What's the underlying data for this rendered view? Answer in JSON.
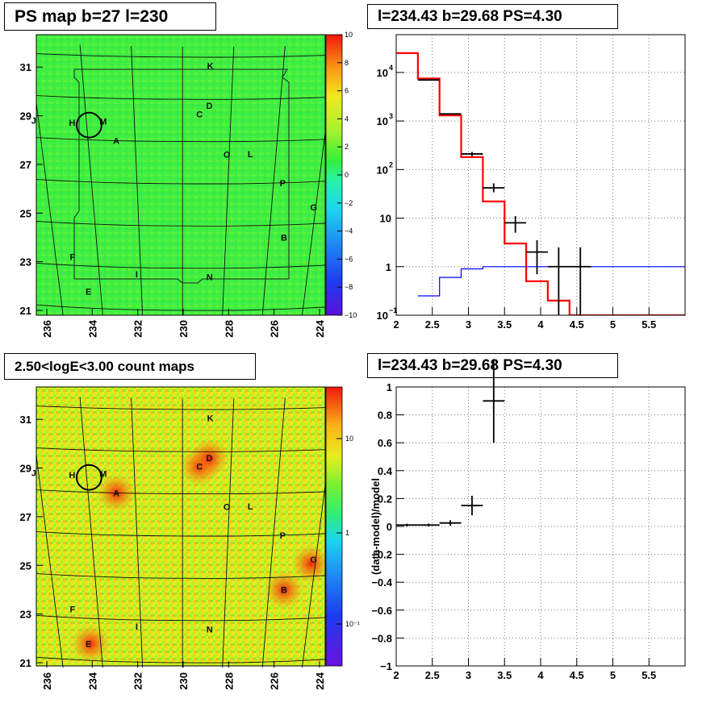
{
  "panels": {
    "ps_map": {
      "title": "PS map b=27 l=230",
      "b_ticks": [
        "21",
        "23",
        "25",
        "27",
        "29",
        "31"
      ],
      "l_ticks": [
        "236",
        "234",
        "232",
        "230",
        "228",
        "226",
        "224"
      ],
      "colorbar": {
        "ticks": [
          "10",
          "8",
          "6",
          "4",
          "2",
          "0",
          "−2",
          "−4",
          "−6",
          "−8",
          "−10"
        ],
        "range": [
          -10,
          10
        ]
      }
    },
    "count_map": {
      "title": "2.50<logE<3.00 count maps",
      "b_ticks": [
        "21",
        "23",
        "25",
        "27",
        "29",
        "31"
      ],
      "l_ticks": [
        "236",
        "234",
        "232",
        "230",
        "228",
        "226",
        "224"
      ],
      "colorbar": {
        "ticks": [
          "10",
          "1",
          "10⁻¹"
        ],
        "scale": "log"
      }
    },
    "spectrum": {
      "title": "l=234.43 b=29.68 PS=4.30"
    },
    "residual": {
      "title": "l=234.43 b=29.68 PS=4.30"
    }
  },
  "markers": [
    {
      "label": "K",
      "l": 228.9,
      "b": 32.6
    },
    {
      "label": "D",
      "l": 228.9,
      "b": 30.7
    },
    {
      "label": "C",
      "l": 229.3,
      "b": 30.3
    },
    {
      "label": "J",
      "l": 236.2,
      "b": 29.8
    },
    {
      "label": "H",
      "l": 234.6,
      "b": 29.8
    },
    {
      "label": "M",
      "l": 233.3,
      "b": 29.9
    },
    {
      "label": "A",
      "l": 232.8,
      "b": 29.0
    },
    {
      "label": "O",
      "l": 228.1,
      "b": 28.4
    },
    {
      "label": "L",
      "l": 227.1,
      "b": 28.4
    },
    {
      "label": "P",
      "l": 225.6,
      "b": 27.0
    },
    {
      "label": "G",
      "l": 224.1,
      "b": 25.8
    },
    {
      "label": "B",
      "l": 225.3,
      "b": 24.4
    },
    {
      "label": "F",
      "l": 235.2,
      "b": 23.4
    },
    {
      "label": "I",
      "l": 232.2,
      "b": 22.7
    },
    {
      "label": "N",
      "l": 228.7,
      "b": 22.6
    },
    {
      "label": "E",
      "l": 234.6,
      "b": 21.8
    }
  ],
  "circle": {
    "l": 233.9,
    "b": 29.7,
    "radius_deg": 0.55
  },
  "blobs": [
    {
      "label": "A",
      "l": 232.8,
      "b": 29.0
    },
    {
      "label": "C",
      "l": 229.3,
      "b": 30.3
    },
    {
      "label": "D",
      "l": 228.9,
      "b": 30.7
    },
    {
      "label": "B",
      "l": 225.3,
      "b": 24.4
    },
    {
      "label": "E",
      "l": 234.5,
      "b": 21.8
    },
    {
      "label": "G",
      "l": 224.2,
      "b": 25.6
    }
  ],
  "chart_data": [
    {
      "type": "line",
      "name": "spectrum",
      "title": "l=234.43 b=29.68 PS=4.30",
      "xlabel": "",
      "ylabel": "",
      "xlim": [
        2,
        6
      ],
      "ylim": [
        0.1,
        60000
      ],
      "yscale": "log",
      "grid": true,
      "x_ticks": [
        "2",
        "2.5",
        "3",
        "3.5",
        "4",
        "4.5",
        "5",
        "5.5"
      ],
      "y_ticks": [
        {
          "v": 0.1,
          "base": "10",
          "exp": "−1"
        },
        {
          "v": 1,
          "base": "1",
          "exp": ""
        },
        {
          "v": 10,
          "base": "10",
          "exp": ""
        },
        {
          "v": 100,
          "base": "10",
          "exp": "2"
        },
        {
          "v": 1000,
          "base": "10",
          "exp": "3"
        },
        {
          "v": 10000,
          "base": "10",
          "exp": "4"
        }
      ],
      "series": [
        {
          "color": "#ff0000",
          "style": "histogram",
          "edges": [
            2.0,
            2.3,
            2.6,
            2.9,
            3.2,
            3.5,
            3.8,
            4.1,
            4.4,
            4.7,
            6.0
          ],
          "values": [
            25000,
            7500,
            1300,
            180,
            22,
            3,
            0.5,
            0.2,
            0.1,
            0.1
          ]
        },
        {
          "color": "#0000ff",
          "style": "histogram",
          "edges": [
            2.3,
            2.6,
            2.9,
            3.2,
            3.5,
            6.0
          ],
          "values": [
            0.25,
            0.6,
            0.9,
            1.0,
            1.0
          ]
        },
        {
          "color": "#000000",
          "style": "errorbars",
          "points": [
            {
              "x": 2.45,
              "y": 7000,
              "xerr": 0.15,
              "ylo": 7000,
              "yhi": 7000
            },
            {
              "x": 2.75,
              "y": 1400,
              "xerr": 0.15,
              "ylo": 1400,
              "yhi": 1400
            },
            {
              "x": 3.05,
              "y": 210,
              "xerr": 0.15,
              "ylo": 190,
              "yhi": 230
            },
            {
              "x": 3.35,
              "y": 42,
              "xerr": 0.15,
              "ylo": 34,
              "yhi": 52
            },
            {
              "x": 3.65,
              "y": 8,
              "xerr": 0.15,
              "ylo": 5,
              "yhi": 11
            },
            {
              "x": 3.95,
              "y": 2,
              "xerr": 0.15,
              "ylo": 0.7,
              "yhi": 3.5
            },
            {
              "x": 4.25,
              "y": 1,
              "xerr": 0.15,
              "ylo": 0.1,
              "yhi": 2.5
            },
            {
              "x": 4.55,
              "y": 1,
              "xerr": 0.15,
              "ylo": 0.1,
              "yhi": 2.5
            }
          ]
        }
      ]
    },
    {
      "type": "scatter",
      "name": "residual",
      "title": "l=234.43 b=29.68 PS=4.30",
      "xlabel": "",
      "ylabel": "(data-model)/model",
      "xlim": [
        2,
        6
      ],
      "ylim": [
        -1,
        1
      ],
      "grid": true,
      "x_ticks": [
        "2",
        "2.5",
        "3",
        "3.5",
        "4",
        "4.5",
        "5",
        "5.5"
      ],
      "y_ticks": [
        "−1",
        "−0.8",
        "−0.6",
        "−0.4",
        "−0.2",
        "0",
        "0.2",
        "0.4",
        "0.6",
        "0.8",
        "1"
      ],
      "points": [
        {
          "x": 2.15,
          "y": 0.01,
          "xerr": 0.15,
          "yerr": 0.01
        },
        {
          "x": 2.45,
          "y": 0.01,
          "xerr": 0.15,
          "yerr": 0.01
        },
        {
          "x": 2.75,
          "y": 0.025,
          "xerr": 0.15,
          "yerr": 0.02
        },
        {
          "x": 3.05,
          "y": 0.15,
          "xerr": 0.15,
          "yerr": 0.07
        },
        {
          "x": 3.35,
          "y": 0.9,
          "xerr": 0.15,
          "yerr": 0.3
        }
      ]
    }
  ]
}
